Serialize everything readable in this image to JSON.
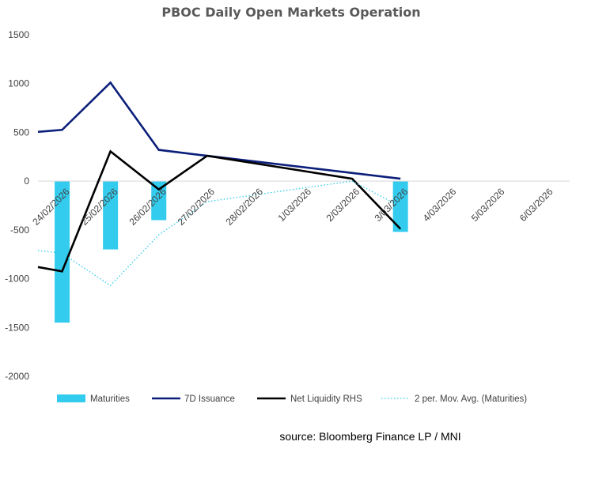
{
  "chart_data": {
    "type": "bar+line",
    "title": "PBOC Daily Open Markets Operation",
    "source": "source:  Bloomberg Finance LP / MNI",
    "categories": [
      "24/02/2026",
      "25/02/2026",
      "26/02/2026",
      "27/02/2026",
      "28/02/2026",
      "1/03/2026",
      "2/03/2026",
      "3/03/2026",
      "4/03/2026",
      "5/03/2026",
      "6/03/2026"
    ],
    "y_ticks": [
      1500,
      1000,
      500,
      0,
      -500,
      -1000,
      -1500,
      -2000
    ],
    "ylim": [
      -2000,
      1500
    ],
    "grid": false,
    "legend_position": "bottom",
    "series": [
      {
        "name": "Maturities",
        "type": "bar",
        "color": "#33CCEE",
        "points": [
          {
            "x": 0.5,
            "y": -1450
          },
          {
            "x": 1.5,
            "y": -700
          },
          {
            "x": 2.5,
            "y": -400
          },
          {
            "x": 7.5,
            "y": -520
          }
        ]
      },
      {
        "name": "7D Issuance",
        "type": "line",
        "color": "#0B1F7A",
        "points": [
          {
            "x": 0,
            "y": 505
          },
          {
            "x": 0.5,
            "y": 525
          },
          {
            "x": 1.5,
            "y": 1010
          },
          {
            "x": 2.5,
            "y": 320
          },
          {
            "x": 3.5,
            "y": 260
          },
          {
            "x": 7.5,
            "y": 25
          }
        ]
      },
      {
        "name": "Net Liquidity RHS",
        "type": "line",
        "color": "#000000",
        "points": [
          {
            "x": 0,
            "y": -880
          },
          {
            "x": 0.5,
            "y": -925
          },
          {
            "x": 1.5,
            "y": 305
          },
          {
            "x": 2.5,
            "y": -85
          },
          {
            "x": 3.5,
            "y": 260
          },
          {
            "x": 6.5,
            "y": 25
          },
          {
            "x": 7.5,
            "y": -490
          }
        ]
      },
      {
        "name": "2 per. Mov. Avg. (Maturities)",
        "type": "line",
        "style": "dotted",
        "color": "#33CCEE",
        "points": [
          {
            "x": 0,
            "y": -710
          },
          {
            "x": 0.5,
            "y": -740
          },
          {
            "x": 1.5,
            "y": -1070
          },
          {
            "x": 2.5,
            "y": -550
          },
          {
            "x": 3.5,
            "y": -210
          },
          {
            "x": 6.5,
            "y": 0
          },
          {
            "x": 7.5,
            "y": -260
          }
        ]
      }
    ]
  }
}
